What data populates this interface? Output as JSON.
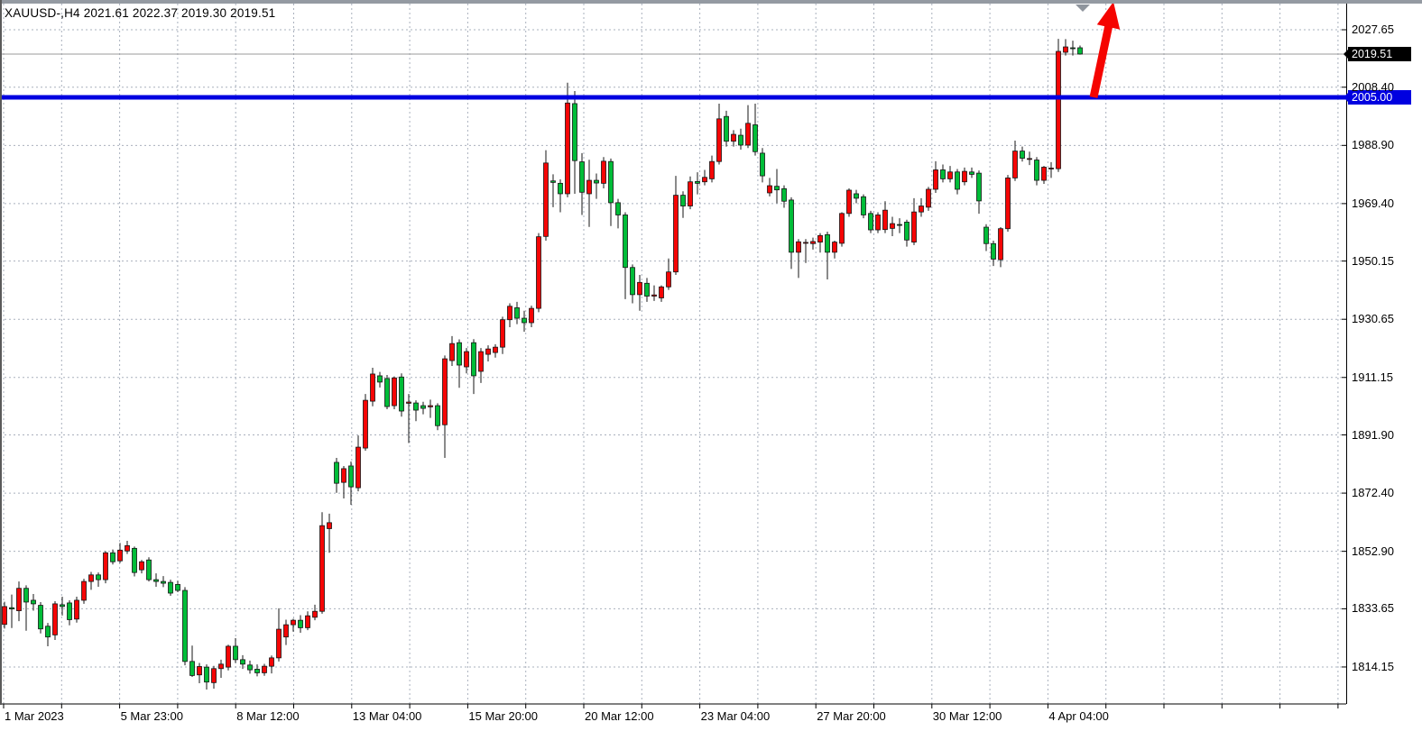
{
  "header": {
    "title_text": "XAUUSD-,H4  2021.61 2022.37 2019.30 2019.51"
  },
  "chart": {
    "background": "#ffffff",
    "grid_color": "#a9b0bd",
    "bull_color": "#f50505",
    "bear_color": "#00bd38",
    "wick_color": "#141414",
    "bid_line_color": "#9b9b9b",
    "frame_color": "#000000"
  },
  "chart_data": {
    "type": "candlestick",
    "symbol": "XAUUSD-",
    "timeframe": "H4",
    "title": "XAUUSD-,H4",
    "current_bar": {
      "open": 2021.61,
      "high": 2022.37,
      "low": 2019.3,
      "close": 2019.51
    },
    "bid": {
      "price": 2019.51,
      "label": "2019.51"
    },
    "price_line": {
      "value": 2005.0,
      "label": "2005.00",
      "color": "#0000e0"
    },
    "y_ticks": [
      2027.65,
      2008.4,
      1988.9,
      1969.4,
      1950.15,
      1930.65,
      1911.15,
      1891.9,
      1872.4,
      1852.9,
      1833.65,
      1814.15
    ],
    "ylim": [
      1802.1,
      2037.6
    ],
    "x_labels": [
      "1 Mar 2023",
      "5 Mar 23:00",
      "8 Mar 12:00",
      "13 Mar 04:00",
      "15 Mar 20:00",
      "20 Mar 12:00",
      "23 Mar 04:00",
      "27 Mar 20:00",
      "30 Mar 12:00",
      "4 Apr 04:00"
    ],
    "grid": true,
    "candles_ohlc": [
      [
        1828.4,
        1836.0,
        1827.0,
        1834.4
      ],
      [
        1834.0,
        1838.4,
        1827.2,
        1833.6
      ],
      [
        1833.0,
        1842.8,
        1829.5,
        1840.5
      ],
      [
        1840.5,
        1841.5,
        1826.3,
        1835.9
      ],
      [
        1836.5,
        1838.6,
        1833.0,
        1835.3
      ],
      [
        1834.8,
        1835.9,
        1825.4,
        1826.9
      ],
      [
        1827.8,
        1828.9,
        1821.1,
        1824.2
      ],
      [
        1824.9,
        1836.2,
        1823.2,
        1835.3
      ],
      [
        1835.0,
        1837.7,
        1831.4,
        1834.4
      ],
      [
        1835.6,
        1836.5,
        1828.1,
        1830.0
      ],
      [
        1830.2,
        1837.7,
        1829.0,
        1836.5
      ],
      [
        1836.5,
        1843.7,
        1835.3,
        1842.8
      ],
      [
        1842.8,
        1846.0,
        1840.0,
        1845.0
      ],
      [
        1845.0,
        1845.8,
        1841.0,
        1843.4
      ],
      [
        1843.4,
        1853.0,
        1842.2,
        1852.4
      ],
      [
        1852.4,
        1853.5,
        1848.5,
        1849.4
      ],
      [
        1849.7,
        1855.7,
        1849.0,
        1853.3
      ],
      [
        1853.0,
        1856.4,
        1852.0,
        1854.8
      ],
      [
        1853.9,
        1854.5,
        1844.5,
        1845.8
      ],
      [
        1846.7,
        1850.0,
        1845.5,
        1849.4
      ],
      [
        1850.0,
        1850.9,
        1842.8,
        1843.4
      ],
      [
        1843.4,
        1845.5,
        1841.0,
        1842.8
      ],
      [
        1842.8,
        1844.6,
        1840.9,
        1842.2
      ],
      [
        1842.5,
        1843.4,
        1838.0,
        1838.9
      ],
      [
        1841.8,
        1843.0,
        1839.2,
        1839.8
      ],
      [
        1839.8,
        1840.9,
        1814.7,
        1816.0
      ],
      [
        1816.0,
        1821.3,
        1810.8,
        1811.3
      ],
      [
        1811.5,
        1815.5,
        1808.7,
        1814.3
      ],
      [
        1814.1,
        1815.0,
        1806.6,
        1809.1
      ],
      [
        1808.9,
        1814.5,
        1806.9,
        1813.6
      ],
      [
        1813.6,
        1816.6,
        1810.5,
        1815.1
      ],
      [
        1814.1,
        1821.6,
        1813.0,
        1821.1
      ],
      [
        1821.1,
        1823.8,
        1815.5,
        1816.6
      ],
      [
        1816.6,
        1818.1,
        1813.5,
        1815.1
      ],
      [
        1814.8,
        1816.3,
        1811.9,
        1813.2
      ],
      [
        1813.4,
        1815.0,
        1811.0,
        1812.2
      ],
      [
        1812.2,
        1815.2,
        1811.2,
        1814.4
      ],
      [
        1814.4,
        1818.0,
        1812.0,
        1817.2
      ],
      [
        1817.2,
        1833.8,
        1816.0,
        1826.8
      ],
      [
        1824.2,
        1830.0,
        1821.5,
        1828.3
      ],
      [
        1828.3,
        1830.3,
        1826.0,
        1829.8
      ],
      [
        1829.8,
        1831.5,
        1825.6,
        1827.3
      ],
      [
        1827.3,
        1832.8,
        1826.5,
        1831.3
      ],
      [
        1830.8,
        1835.0,
        1829.8,
        1832.8
      ],
      [
        1832.8,
        1866.0,
        1832.0,
        1861.5
      ],
      [
        1860.5,
        1865.5,
        1852.4,
        1862.5
      ],
      [
        1882.7,
        1884.2,
        1872.5,
        1875.7
      ],
      [
        1876.0,
        1881.5,
        1870.6,
        1880.6
      ],
      [
        1881.5,
        1883.0,
        1868.5,
        1874.5
      ],
      [
        1874.2,
        1891.7,
        1873.0,
        1887.8
      ],
      [
        1887.5,
        1905.6,
        1886.6,
        1903.5
      ],
      [
        1903.2,
        1914.4,
        1901.5,
        1912.3
      ],
      [
        1911.7,
        1913.0,
        1907.8,
        1909.6
      ],
      [
        1910.8,
        1912.0,
        1900.5,
        1901.4
      ],
      [
        1901.7,
        1911.5,
        1900.5,
        1911.0
      ],
      [
        1911.3,
        1912.5,
        1898.0,
        1899.9
      ],
      [
        1902.5,
        1905.6,
        1889.2,
        1902.9
      ],
      [
        1902.6,
        1903.5,
        1896.5,
        1900.2
      ],
      [
        1901.7,
        1903.0,
        1898.8,
        1900.8
      ],
      [
        1901.3,
        1903.7,
        1897.6,
        1901.7
      ],
      [
        1901.7,
        1902.5,
        1893.5,
        1895.0
      ],
      [
        1895.3,
        1918.5,
        1884.2,
        1917.4
      ],
      [
        1916.8,
        1925.0,
        1915.0,
        1922.5
      ],
      [
        1922.8,
        1923.9,
        1907.7,
        1915.3
      ],
      [
        1914.7,
        1921.0,
        1912.5,
        1919.8
      ],
      [
        1922.8,
        1924.0,
        1905.6,
        1911.7
      ],
      [
        1913.2,
        1921.0,
        1909.3,
        1919.8
      ],
      [
        1918.9,
        1921.9,
        1916.5,
        1920.7
      ],
      [
        1919.5,
        1922.3,
        1917.8,
        1921.3
      ],
      [
        1921.3,
        1931.5,
        1919.0,
        1930.5
      ],
      [
        1930.5,
        1936.0,
        1928.0,
        1935.0
      ],
      [
        1934.5,
        1936.5,
        1929.0,
        1931.0
      ],
      [
        1931.0,
        1933.5,
        1926.5,
        1929.5
      ],
      [
        1929.5,
        1935.2,
        1928.0,
        1934.3
      ],
      [
        1934.3,
        1959.5,
        1933.0,
        1958.3
      ],
      [
        1958.4,
        1987.3,
        1957.0,
        1983.0
      ],
      [
        1977.0,
        1979.2,
        1968.2,
        1976.5
      ],
      [
        1976.2,
        1977.5,
        1966.5,
        1972.7
      ],
      [
        1972.7,
        2009.9,
        1971.5,
        2003.1
      ],
      [
        2002.9,
        2007.1,
        1972.7,
        1983.8
      ],
      [
        1983.4,
        1986.3,
        1965.6,
        1973.2
      ],
      [
        1972.7,
        1984.1,
        1961.6,
        1977.2
      ],
      [
        1977.2,
        1979.5,
        1971.0,
        1976.3
      ],
      [
        1976.2,
        1985.0,
        1974.5,
        1983.6
      ],
      [
        1983.5,
        1984.5,
        1961.9,
        1969.7
      ],
      [
        1969.7,
        1971.0,
        1961.1,
        1965.6
      ],
      [
        1965.6,
        1966.5,
        1937.4,
        1948.0
      ],
      [
        1948.0,
        1949.0,
        1936.0,
        1938.9
      ],
      [
        1938.9,
        1945.5,
        1933.5,
        1943.0
      ],
      [
        1942.7,
        1944.5,
        1936.5,
        1938.4
      ],
      [
        1938.4,
        1942.0,
        1936.8,
        1938.8
      ],
      [
        1937.8,
        1942.0,
        1936.5,
        1941.5
      ],
      [
        1941.5,
        1951.0,
        1940.5,
        1946.5
      ],
      [
        1946.5,
        1978.7,
        1945.5,
        1972.2
      ],
      [
        1972.2,
        1973.5,
        1964.6,
        1968.6
      ],
      [
        1968.6,
        1978.5,
        1967.5,
        1976.7
      ],
      [
        1976.8,
        1979.9,
        1972.5,
        1976.2
      ],
      [
        1976.7,
        1980.7,
        1975.5,
        1978.2
      ],
      [
        1977.7,
        1985.5,
        1976.5,
        1983.5
      ],
      [
        1983.5,
        2002.9,
        1982.5,
        1997.8
      ],
      [
        1998.6,
        2000.5,
        1988.5,
        1990.3
      ],
      [
        1990.3,
        1994.0,
        1988.5,
        1992.6
      ],
      [
        1992.3,
        1994.5,
        1987.5,
        1989.0
      ],
      [
        1989.0,
        2002.4,
        1988.0,
        1996.3
      ],
      [
        1995.8,
        2002.9,
        1985.5,
        1986.8
      ],
      [
        1986.3,
        1988.0,
        1976.5,
        1978.7
      ],
      [
        1973.0,
        1978.0,
        1971.8,
        1975.4
      ],
      [
        1975.2,
        1981.0,
        1969.5,
        1974.0
      ],
      [
        1974.4,
        1975.5,
        1968.0,
        1970.2
      ],
      [
        1970.6,
        1971.5,
        1947.5,
        1953.1
      ],
      [
        1953.1,
        1957.5,
        1944.5,
        1956.6
      ],
      [
        1956.1,
        1957.5,
        1949.5,
        1956.4
      ],
      [
        1956.0,
        1958.0,
        1954.0,
        1956.7
      ],
      [
        1956.5,
        1959.5,
        1953.0,
        1958.7
      ],
      [
        1959.0,
        1960.0,
        1944.0,
        1953.1
      ],
      [
        1953.1,
        1957.0,
        1951.0,
        1956.5
      ],
      [
        1956.1,
        1966.5,
        1955.0,
        1966.1
      ],
      [
        1966.1,
        1974.5,
        1965.0,
        1973.9
      ],
      [
        1972.7,
        1974.0,
        1969.5,
        1971.2
      ],
      [
        1971.7,
        1972.5,
        1964.5,
        1965.6
      ],
      [
        1966.1,
        1967.0,
        1959.5,
        1960.6
      ],
      [
        1960.6,
        1966.5,
        1959.5,
        1965.6
      ],
      [
        1960.7,
        1970.2,
        1959.5,
        1967.2
      ],
      [
        1961.1,
        1965.0,
        1958.5,
        1962.7
      ],
      [
        1962.4,
        1964.5,
        1959.5,
        1962.1
      ],
      [
        1963.2,
        1964.0,
        1955.0,
        1957.2
      ],
      [
        1956.5,
        1971.2,
        1955.5,
        1966.6
      ],
      [
        1966.6,
        1971.2,
        1965.0,
        1968.6
      ],
      [
        1968.2,
        1975.0,
        1967.0,
        1974.2
      ],
      [
        1974.2,
        1983.6,
        1973.0,
        1980.7
      ],
      [
        1980.7,
        1982.5,
        1976.5,
        1977.7
      ],
      [
        1977.7,
        1982.0,
        1976.5,
        1980.0
      ],
      [
        1980.0,
        1981.0,
        1972.5,
        1974.2
      ],
      [
        1976.7,
        1981.5,
        1975.5,
        1980.2
      ],
      [
        1980.0,
        1981.5,
        1978.0,
        1979.2
      ],
      [
        1979.6,
        1980.5,
        1966.0,
        1970.3
      ],
      [
        1961.5,
        1962.5,
        1953.5,
        1956.0
      ],
      [
        1956.0,
        1957.0,
        1948.5,
        1950.8
      ],
      [
        1950.6,
        1961.5,
        1948.1,
        1961.0
      ],
      [
        1961.0,
        1979.0,
        1960.0,
        1978.0
      ],
      [
        1978.0,
        1990.5,
        1977.0,
        1987.0
      ],
      [
        1987.0,
        1988.5,
        1983.5,
        1984.6
      ],
      [
        1984.3,
        1986.8,
        1982.3,
        1984.5
      ],
      [
        1984.0,
        1985.0,
        1975.5,
        1977.2
      ],
      [
        1977.2,
        1982.0,
        1976.0,
        1981.6
      ],
      [
        1981.0,
        1983.3,
        1978.0,
        1981.3
      ],
      [
        1981.1,
        2024.6,
        1980.0,
        2020.4
      ],
      [
        2020.1,
        2024.5,
        2019.0,
        2021.9
      ],
      [
        2021.6,
        2024.0,
        2019.0,
        2021.4
      ],
      [
        2021.61,
        2022.37,
        2019.3,
        2019.51
      ]
    ]
  },
  "annotations": {
    "arrow": {
      "shape": "up-arrow",
      "color": "#f50400"
    },
    "shift_marker": {
      "shape": "down-triangle",
      "color": "#8f959d"
    }
  }
}
